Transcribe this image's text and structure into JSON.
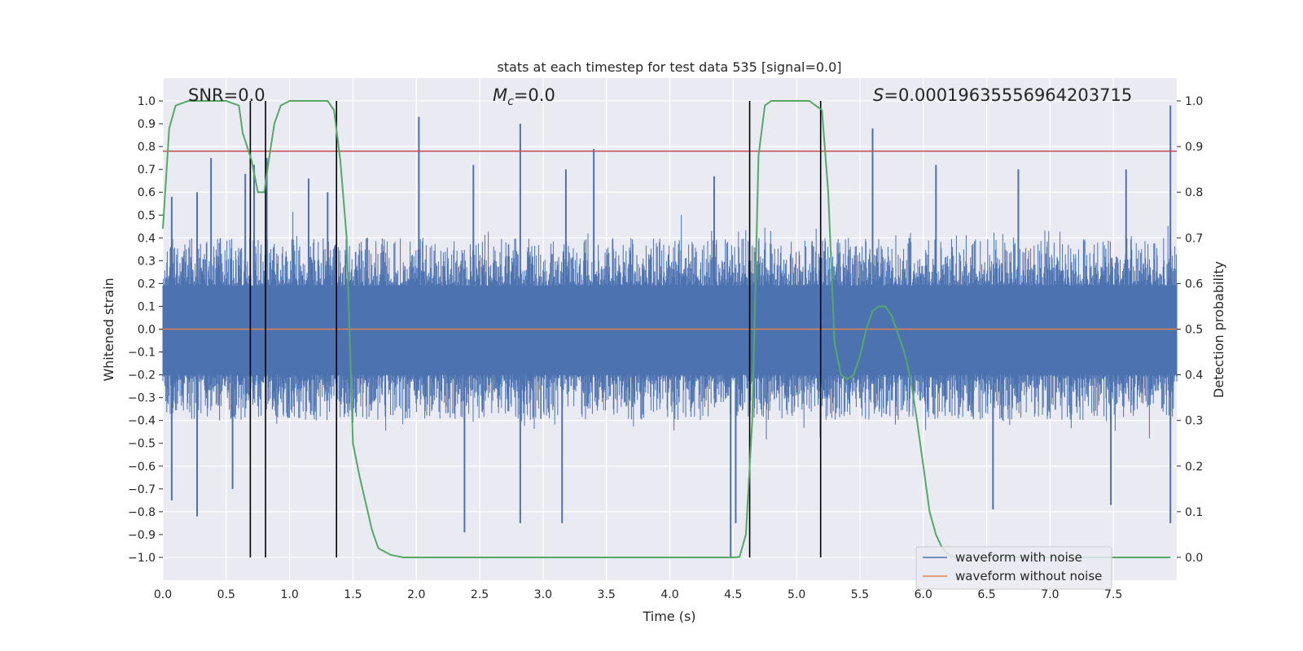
{
  "chart_data": {
    "type": "line",
    "title": "stats at each timestep for test data 535 [signal=0.0]",
    "xlabel": "Time (s)",
    "ylabel": "Whitened strain",
    "y2label": "Detection probability",
    "xlim": [
      0.0,
      8.0
    ],
    "ylim": [
      -1.1,
      1.1
    ],
    "y2lim": [
      -0.05,
      1.05
    ],
    "grid": true,
    "x_ticks": [
      "0.0",
      "0.5",
      "1.0",
      "1.5",
      "2.0",
      "2.5",
      "3.0",
      "3.5",
      "4.0",
      "4.5",
      "5.0",
      "5.5",
      "6.0",
      "6.5",
      "7.0",
      "7.5"
    ],
    "y_ticks": [
      "1.0",
      "0.9",
      "0.8",
      "0.7",
      "0.6",
      "0.5",
      "0.4",
      "0.3",
      "0.2",
      "0.1",
      "0.0",
      "−0.1",
      "−0.2",
      "−0.3",
      "−0.4",
      "−0.5",
      "−0.6",
      "−0.7",
      "−0.8",
      "−0.9",
      "−1.0"
    ],
    "y2_ticks": [
      "1.0",
      "0.9",
      "0.8",
      "0.7",
      "0.6",
      "0.5",
      "0.4",
      "0.3",
      "0.2",
      "0.1",
      "0.0"
    ],
    "annotations": {
      "snr": "SNR=0.0",
      "mc_symbol": "M",
      "mc_sub": "c",
      "mc_value": "=0.0",
      "s_symbol": "S",
      "s_value": "=0.00019635556964203715"
    },
    "series": [
      {
        "name": "waveform with noise",
        "color": "#4c72b0",
        "noise_envelope": {
          "typical_low": -0.4,
          "typical_high": 0.4,
          "dense_low": -0.2,
          "dense_high": 0.19
        },
        "spikes": [
          {
            "x": 0.07,
            "y": 0.58
          },
          {
            "x": 0.27,
            "y": 0.6
          },
          {
            "x": 0.38,
            "y": 0.75
          },
          {
            "x": 0.65,
            "y": 0.68
          },
          {
            "x": 0.72,
            "y": 0.72
          },
          {
            "x": 0.82,
            "y": 0.75
          },
          {
            "x": 1.15,
            "y": 0.66
          },
          {
            "x": 1.3,
            "y": 0.6
          },
          {
            "x": 2.02,
            "y": 0.93
          },
          {
            "x": 2.45,
            "y": 0.72
          },
          {
            "x": 2.82,
            "y": 0.9
          },
          {
            "x": 3.18,
            "y": 0.7
          },
          {
            "x": 3.4,
            "y": 0.79
          },
          {
            "x": 4.35,
            "y": 0.67
          },
          {
            "x": 5.6,
            "y": 0.88
          },
          {
            "x": 6.1,
            "y": 0.72
          },
          {
            "x": 6.75,
            "y": 0.7
          },
          {
            "x": 7.6,
            "y": 0.7
          },
          {
            "x": 7.95,
            "y": 0.98
          },
          {
            "x": 0.07,
            "y": -0.75
          },
          {
            "x": 0.27,
            "y": -0.82
          },
          {
            "x": 0.55,
            "y": -0.7
          },
          {
            "x": 2.38,
            "y": -0.89
          },
          {
            "x": 2.82,
            "y": -0.85
          },
          {
            "x": 3.15,
            "y": -0.85
          },
          {
            "x": 4.48,
            "y": -1.0
          },
          {
            "x": 4.52,
            "y": -0.85
          },
          {
            "x": 6.55,
            "y": -0.79
          },
          {
            "x": 7.48,
            "y": -0.77
          },
          {
            "x": 7.95,
            "y": -0.85
          }
        ]
      },
      {
        "name": "waveform without noise",
        "color": "#dd8452",
        "x": [
          0.0,
          8.0
        ],
        "y": [
          0.0,
          0.0
        ]
      },
      {
        "name": "detection probability",
        "color": "#55a868",
        "axis": "right",
        "x": [
          0.0,
          0.05,
          0.1,
          0.2,
          0.3,
          0.4,
          0.5,
          0.6,
          0.63,
          0.7,
          0.75,
          0.8,
          0.83,
          0.88,
          0.93,
          1.0,
          1.1,
          1.2,
          1.3,
          1.35,
          1.4,
          1.45,
          1.5,
          1.55,
          1.6,
          1.65,
          1.7,
          1.8,
          1.9,
          2.0,
          3.0,
          4.0,
          4.5,
          4.55,
          4.6,
          4.65,
          4.7,
          4.75,
          4.8,
          5.0,
          5.1,
          5.15,
          5.2,
          5.25,
          5.3,
          5.35,
          5.4,
          5.45,
          5.5,
          5.55,
          5.6,
          5.65,
          5.7,
          5.75,
          5.8,
          5.85,
          5.9,
          5.95,
          6.0,
          6.05,
          6.1,
          6.15,
          6.2,
          6.25,
          6.3,
          6.4,
          6.5,
          6.6,
          7.0,
          7.5,
          7.95
        ],
        "y": [
          0.72,
          0.94,
          0.99,
          1.0,
          1.0,
          1.0,
          1.0,
          0.99,
          0.93,
          0.87,
          0.8,
          0.8,
          0.86,
          0.95,
          0.99,
          1.0,
          1.0,
          1.0,
          1.0,
          0.98,
          0.87,
          0.7,
          0.25,
          0.18,
          0.12,
          0.06,
          0.02,
          0.005,
          0.0,
          0.0,
          0.0,
          0.0,
          0.0,
          0.001,
          0.05,
          0.3,
          0.88,
          0.99,
          1.0,
          1.0,
          1.0,
          0.99,
          0.98,
          0.8,
          0.47,
          0.4,
          0.39,
          0.4,
          0.44,
          0.5,
          0.54,
          0.55,
          0.55,
          0.53,
          0.49,
          0.45,
          0.39,
          0.3,
          0.2,
          0.1,
          0.05,
          0.02,
          0.005,
          0.0,
          0.0,
          0.0,
          0.0,
          0.0,
          0.0,
          0.0,
          0.0
        ]
      }
    ],
    "threshold_line": {
      "y": 0.78,
      "color": "#c44e52"
    },
    "vertical_markers_x": [
      0.69,
      0.81,
      1.37,
      4.63,
      5.19
    ],
    "legend": {
      "position": "lower-right",
      "entries": [
        {
          "label": "waveform with noise",
          "color": "#4c72b0"
        },
        {
          "label": "waveform without noise",
          "color": "#dd8452"
        }
      ]
    }
  }
}
